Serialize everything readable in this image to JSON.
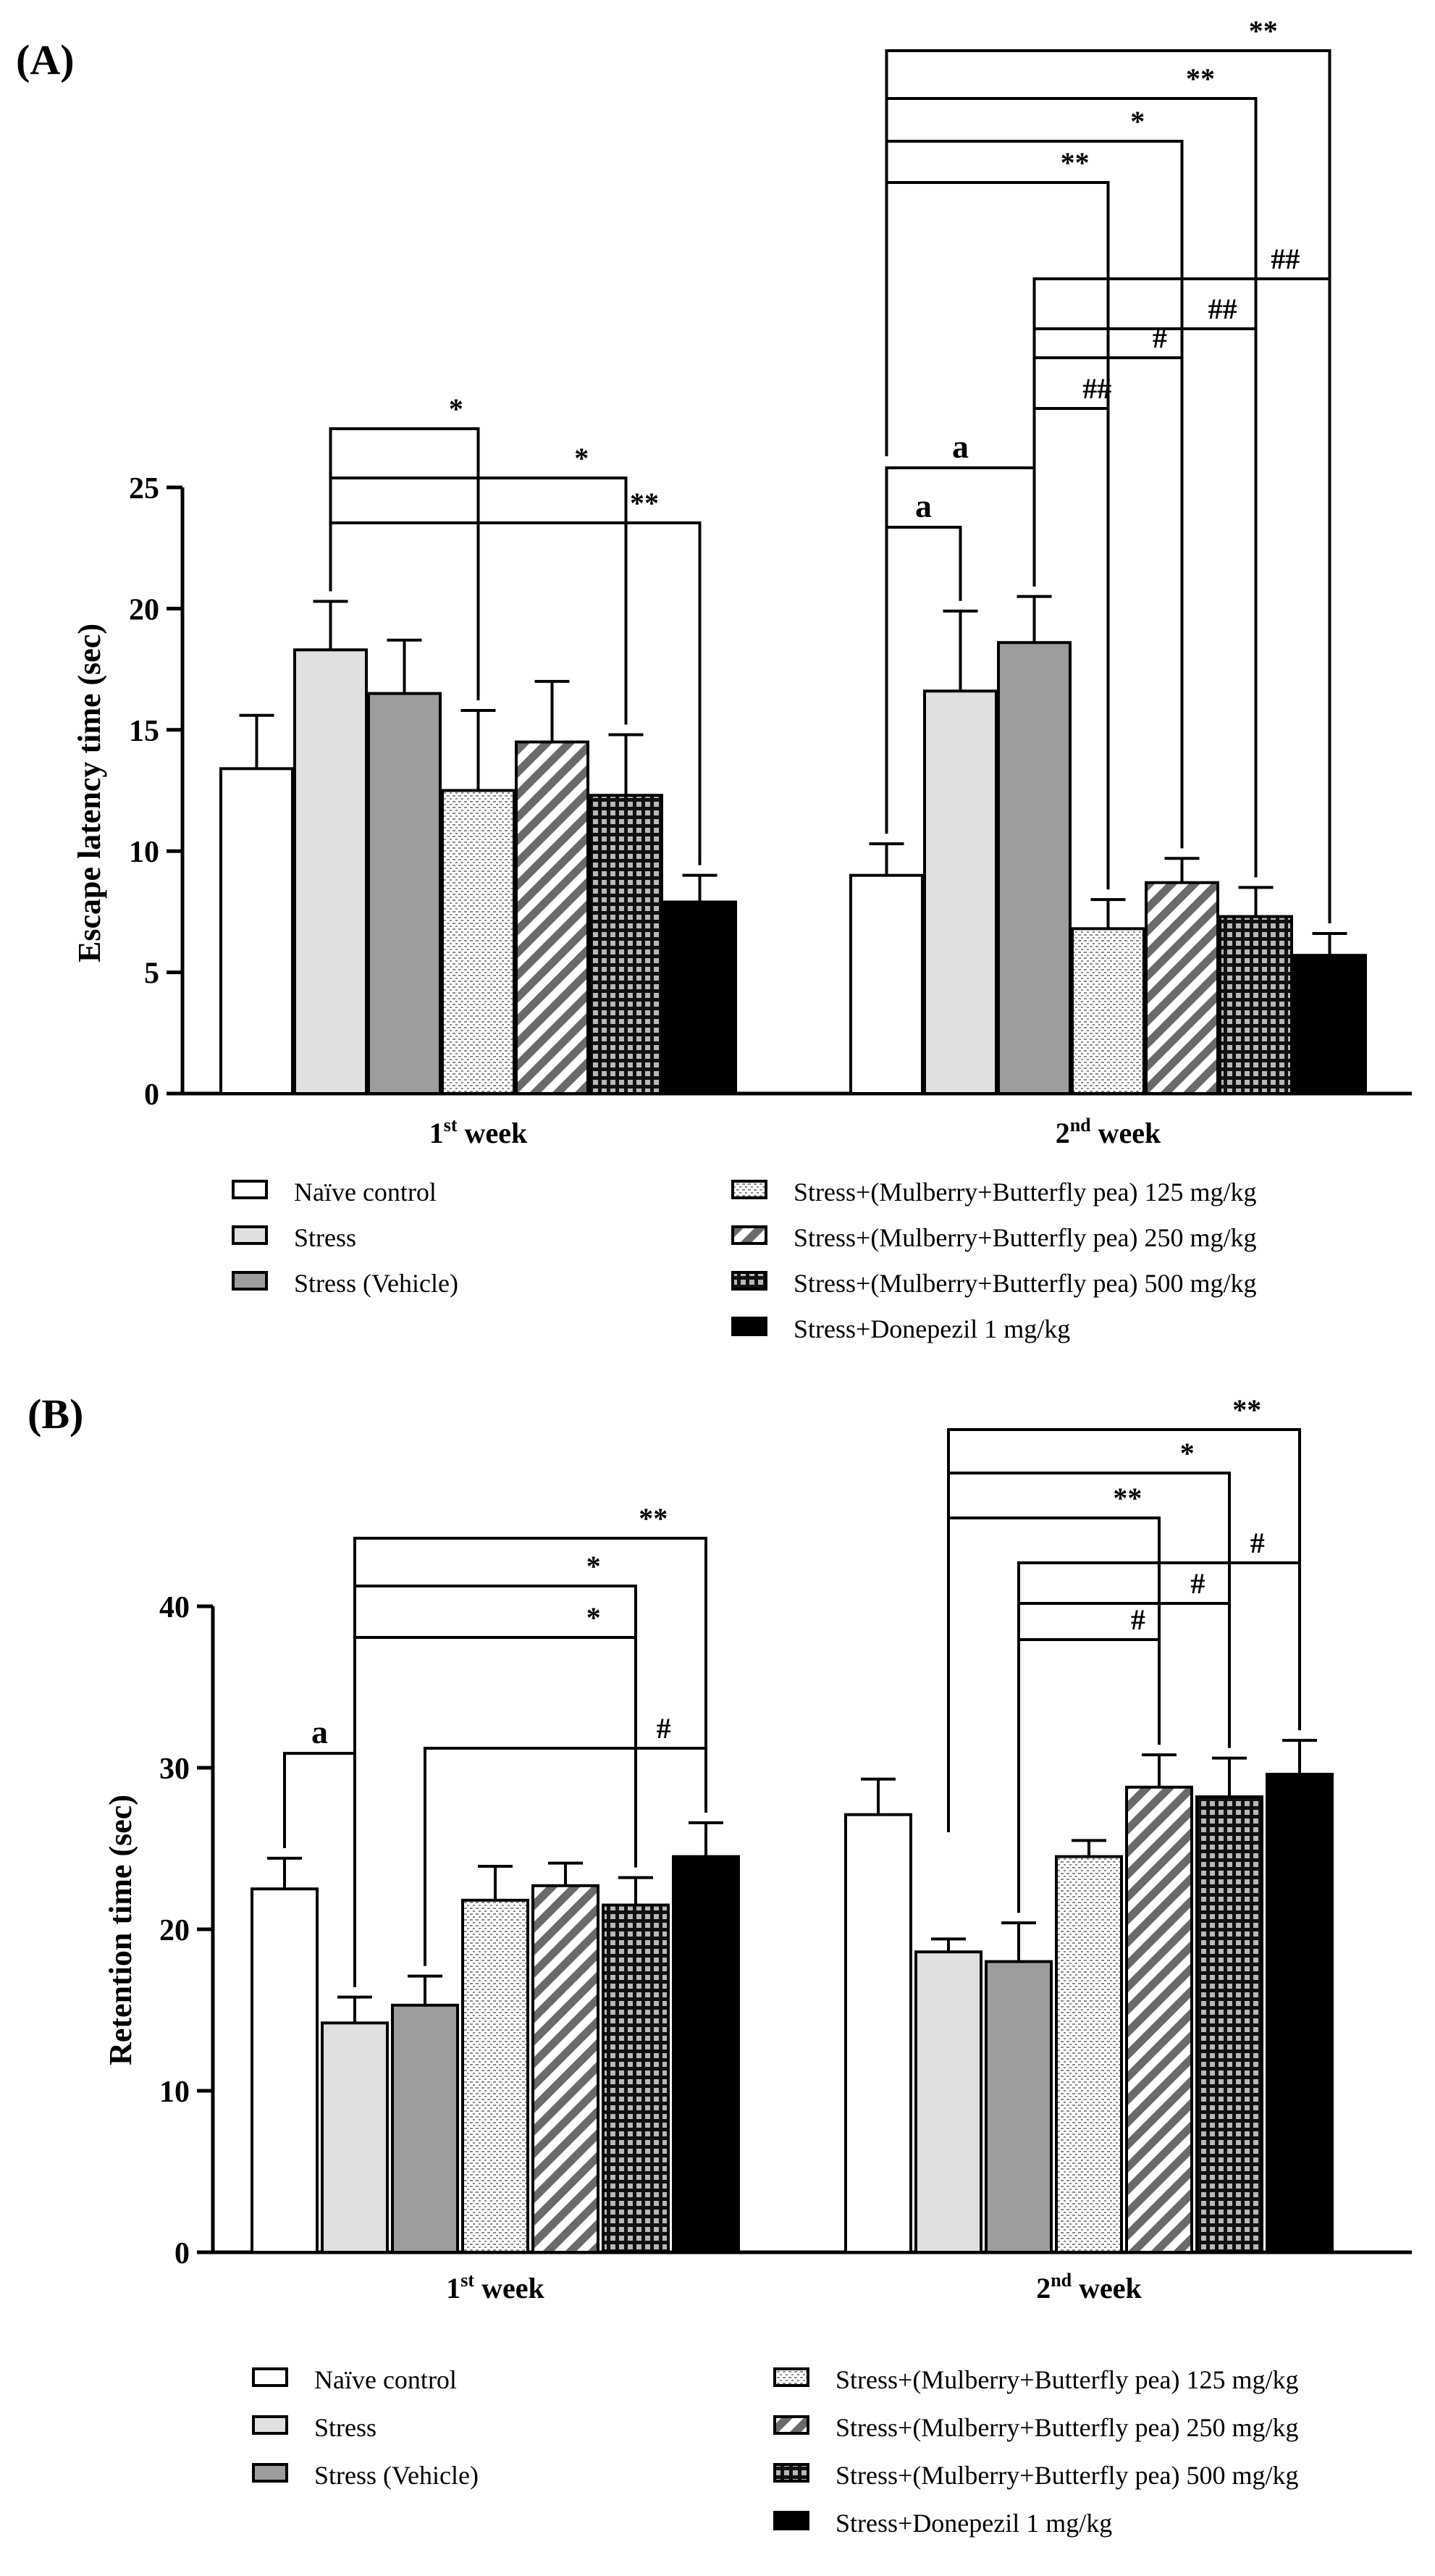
{
  "chart_data": [
    {
      "panel_label": "(A)",
      "type": "bar",
      "ylabel": "Escape latency time (sec)",
      "ylim": [
        0,
        25
      ],
      "yticks": [
        0,
        5,
        10,
        15,
        20,
        25
      ],
      "categories": [
        {
          "main": "1",
          "sup": "st",
          "rest": " week"
        },
        {
          "main": "2",
          "sup": "nd",
          "rest": " week"
        }
      ],
      "series": [
        {
          "name": "Naïve control",
          "values": [
            13.4,
            9.0
          ],
          "errors": [
            2.2,
            1.3
          ]
        },
        {
          "name": "Stress",
          "values": [
            18.3,
            16.6
          ],
          "errors": [
            2.0,
            3.3
          ]
        },
        {
          "name": "Stress (Vehicle)",
          "values": [
            16.5,
            18.6
          ],
          "errors": [
            2.2,
            1.9
          ]
        },
        {
          "name": "Stress+(Mulberry+Butterfly pea) 125 mg/kg",
          "values": [
            12.5,
            6.8
          ],
          "errors": [
            3.3,
            1.2
          ]
        },
        {
          "name": "Stress+(Mulberry+Butterfly pea) 250 mg/kg",
          "values": [
            14.5,
            8.7
          ],
          "errors": [
            2.5,
            1.0
          ]
        },
        {
          "name": "Stress+(Mulberry+Butterfly pea) 500 mg/kg",
          "values": [
            12.3,
            7.3
          ],
          "errors": [
            2.5,
            1.2
          ]
        },
        {
          "name": "Stress+Donepezil 1 mg/kg",
          "values": [
            7.9,
            5.7
          ],
          "errors": [
            1.1,
            0.9
          ]
        }
      ],
      "annotations": [
        {
          "group": 0,
          "from": 1,
          "to": 3,
          "label": "*"
        },
        {
          "group": 0,
          "from": 1,
          "to": 5,
          "label": "*"
        },
        {
          "group": 0,
          "from": 1,
          "to": 6,
          "label": "**"
        },
        {
          "group": 1,
          "from": 0,
          "to": 1,
          "label": "a"
        },
        {
          "group": 1,
          "from": 0,
          "to": 2,
          "label": "a"
        },
        {
          "group": 1,
          "from": 2,
          "to": 3,
          "label": "##"
        },
        {
          "group": 1,
          "from": 2,
          "to": 4,
          "label": "#"
        },
        {
          "group": 1,
          "from": 2,
          "to": 5,
          "label": "##"
        },
        {
          "group": 1,
          "from": 2,
          "to": 6,
          "label": "##"
        },
        {
          "group": 1,
          "from": 0,
          "to": 3,
          "label": "**"
        },
        {
          "group": 1,
          "from": 0,
          "to": 4,
          "label": "*"
        },
        {
          "group": 1,
          "from": 0,
          "to": 5,
          "label": "**"
        },
        {
          "group": 1,
          "from": 0,
          "to": 6,
          "label": "**"
        }
      ],
      "legend_position": "below"
    },
    {
      "panel_label": "(B)",
      "type": "bar",
      "ylabel": "Retention time (sec)",
      "ylim": [
        0,
        40
      ],
      "yticks": [
        0,
        10,
        20,
        30,
        40
      ],
      "categories": [
        {
          "main": "1",
          "sup": "st",
          "rest": " week"
        },
        {
          "main": "2",
          "sup": "nd",
          "rest": " week"
        }
      ],
      "series": [
        {
          "name": "Naïve control",
          "values": [
            22.5,
            27.1
          ],
          "errors": [
            1.9,
            2.2
          ]
        },
        {
          "name": "Stress",
          "values": [
            14.2,
            18.6
          ],
          "errors": [
            1.6,
            0.8
          ]
        },
        {
          "name": "Stress (Vehicle)",
          "values": [
            15.3,
            18.0
          ],
          "errors": [
            1.8,
            2.4
          ]
        },
        {
          "name": "Stress+(Mulberry+Butterfly pea) 125 mg/kg",
          "values": [
            21.8,
            24.5
          ],
          "errors": [
            2.1,
            1.0
          ]
        },
        {
          "name": "Stress+(Mulberry+Butterfly pea) 250 mg/kg",
          "values": [
            22.7,
            28.8
          ],
          "errors": [
            1.4,
            2.0
          ]
        },
        {
          "name": "Stress+(Mulberry+Butterfly pea) 500 mg/kg",
          "values": [
            21.5,
            28.2
          ],
          "errors": [
            1.7,
            2.4
          ]
        },
        {
          "name": "Stress+Donepezil 1 mg/kg",
          "values": [
            24.5,
            29.6
          ],
          "errors": [
            2.1,
            2.1
          ]
        }
      ],
      "annotations": [
        {
          "group": 0,
          "from": 0,
          "to": 1,
          "label": "a"
        },
        {
          "group": 0,
          "from": 2,
          "to": 6,
          "label": "#"
        },
        {
          "group": 0,
          "from": 1,
          "to": 5,
          "label": "*"
        },
        {
          "group": 0,
          "from": 1,
          "to": 5,
          "label": "*"
        },
        {
          "group": 0,
          "from": 1,
          "to": 6,
          "label": "**"
        },
        {
          "group": 1,
          "from": 2,
          "to": 4,
          "label": "#"
        },
        {
          "group": 1,
          "from": 2,
          "to": 5,
          "label": "#"
        },
        {
          "group": 1,
          "from": 2,
          "to": 6,
          "label": "#"
        },
        {
          "group": 1,
          "from": 1,
          "to": 4,
          "label": "**"
        },
        {
          "group": 1,
          "from": 1,
          "to": 5,
          "label": "*"
        },
        {
          "group": 1,
          "from": 1,
          "to": 6,
          "label": "**"
        }
      ],
      "legend_position": "below"
    }
  ]
}
